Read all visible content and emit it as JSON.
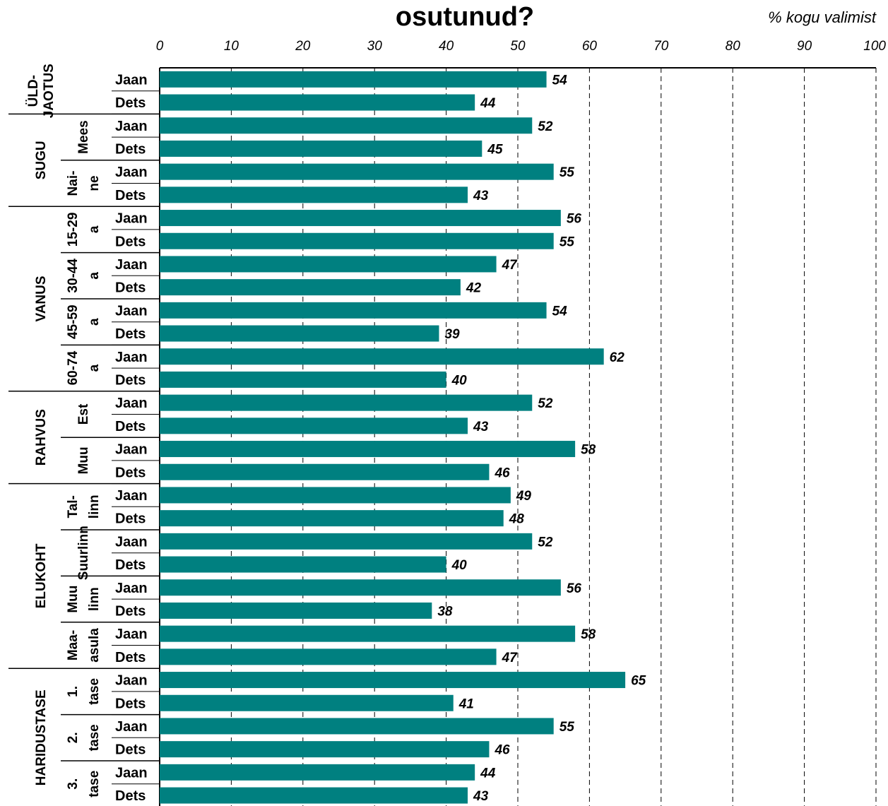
{
  "chart_data": {
    "type": "bar",
    "orientation": "horizontal",
    "title": "osutunud?",
    "unit_label": "% kogu valimist",
    "xlim": [
      0,
      100
    ],
    "x_ticks": [
      "0",
      "10",
      "20",
      "30",
      "40",
      "50",
      "60",
      "70",
      "80",
      "90",
      "100"
    ],
    "bar_color": "#008080",
    "grid": "dashed vertical",
    "rows": [
      {
        "label": "Jaan",
        "value": 54
      },
      {
        "label": "Dets",
        "value": 44
      },
      {
        "label": "Jaan",
        "value": 52
      },
      {
        "label": "Dets",
        "value": 45
      },
      {
        "label": "Jaan",
        "value": 55
      },
      {
        "label": "Dets",
        "value": 43
      },
      {
        "label": "Jaan",
        "value": 56
      },
      {
        "label": "Dets",
        "value": 55
      },
      {
        "label": "Jaan",
        "value": 47
      },
      {
        "label": "Dets",
        "value": 42
      },
      {
        "label": "Jaan",
        "value": 54
      },
      {
        "label": "Dets",
        "value": 39
      },
      {
        "label": "Jaan",
        "value": 62
      },
      {
        "label": "Dets",
        "value": 40
      },
      {
        "label": "Jaan",
        "value": 52
      },
      {
        "label": "Dets",
        "value": 43
      },
      {
        "label": "Jaan",
        "value": 58
      },
      {
        "label": "Dets",
        "value": 46
      },
      {
        "label": "Jaan",
        "value": 49
      },
      {
        "label": "Dets",
        "value": 48
      },
      {
        "label": "Jaan",
        "value": 52
      },
      {
        "label": "Dets",
        "value": 40
      },
      {
        "label": "Jaan",
        "value": 56
      },
      {
        "label": "Dets",
        "value": 38
      },
      {
        "label": "Jaan",
        "value": 58
      },
      {
        "label": "Dets",
        "value": 47
      },
      {
        "label": "Jaan",
        "value": 65
      },
      {
        "label": "Dets",
        "value": 41
      },
      {
        "label": "Jaan",
        "value": 55
      },
      {
        "label": "Dets",
        "value": 46
      },
      {
        "label": "Jaan",
        "value": 44
      },
      {
        "label": "Dets",
        "value": 43
      }
    ],
    "groups": [
      {
        "label": "ÜLD-JAOTUS",
        "lines": [
          "ÜLD-",
          "JAOTUS"
        ],
        "start": 0,
        "end": 2
      },
      {
        "label": "SUGU",
        "lines": [
          "SUGU"
        ],
        "start": 2,
        "end": 6
      },
      {
        "label": "VANUS",
        "lines": [
          "VANUS"
        ],
        "start": 6,
        "end": 14
      },
      {
        "label": "RAHVUS",
        "lines": [
          "RAHVUS"
        ],
        "start": 14,
        "end": 18
      },
      {
        "label": "ELUKOHT",
        "lines": [
          "ELUKOHT"
        ],
        "start": 18,
        "end": 26
      },
      {
        "label": "HARIDUSTASE",
        "lines": [
          "HARIDUSTASE"
        ],
        "start": 26,
        "end": 32
      }
    ],
    "subgroups": [
      {
        "label": "Mees",
        "lines": [
          "Mees"
        ],
        "start": 2,
        "end": 4
      },
      {
        "label": "Nai-ne",
        "lines": [
          "Nai-",
          "ne"
        ],
        "start": 4,
        "end": 6
      },
      {
        "label": "15-29 a",
        "lines": [
          "15-29",
          "a"
        ],
        "start": 6,
        "end": 8
      },
      {
        "label": "30-44 a",
        "lines": [
          "30-44",
          "a"
        ],
        "start": 8,
        "end": 10
      },
      {
        "label": "45-59 a",
        "lines": [
          "45-59",
          "a"
        ],
        "start": 10,
        "end": 12
      },
      {
        "label": "60-74 a",
        "lines": [
          "60-74",
          "a"
        ],
        "start": 12,
        "end": 14
      },
      {
        "label": "Est",
        "lines": [
          "Est"
        ],
        "start": 14,
        "end": 16
      },
      {
        "label": "Muu",
        "lines": [
          "Muu"
        ],
        "start": 16,
        "end": 18
      },
      {
        "label": "Tal-linn",
        "lines": [
          "Tal-",
          "linn"
        ],
        "start": 18,
        "end": 20
      },
      {
        "label": "Suurlinn",
        "lines": [
          "Suurlinn"
        ],
        "start": 20,
        "end": 22
      },
      {
        "label": "Muu linn",
        "lines": [
          "Muu",
          "linn"
        ],
        "start": 22,
        "end": 24
      },
      {
        "label": "Maa-asula",
        "lines": [
          "Maa-",
          "asula"
        ],
        "start": 24,
        "end": 26
      },
      {
        "label": "1. tase",
        "lines": [
          "1.",
          "tase"
        ],
        "start": 26,
        "end": 28
      },
      {
        "label": "2. tase",
        "lines": [
          "2.",
          "tase"
        ],
        "start": 28,
        "end": 30
      },
      {
        "label": "3. tase",
        "lines": [
          "3.",
          "tase"
        ],
        "start": 30,
        "end": 32
      }
    ]
  }
}
